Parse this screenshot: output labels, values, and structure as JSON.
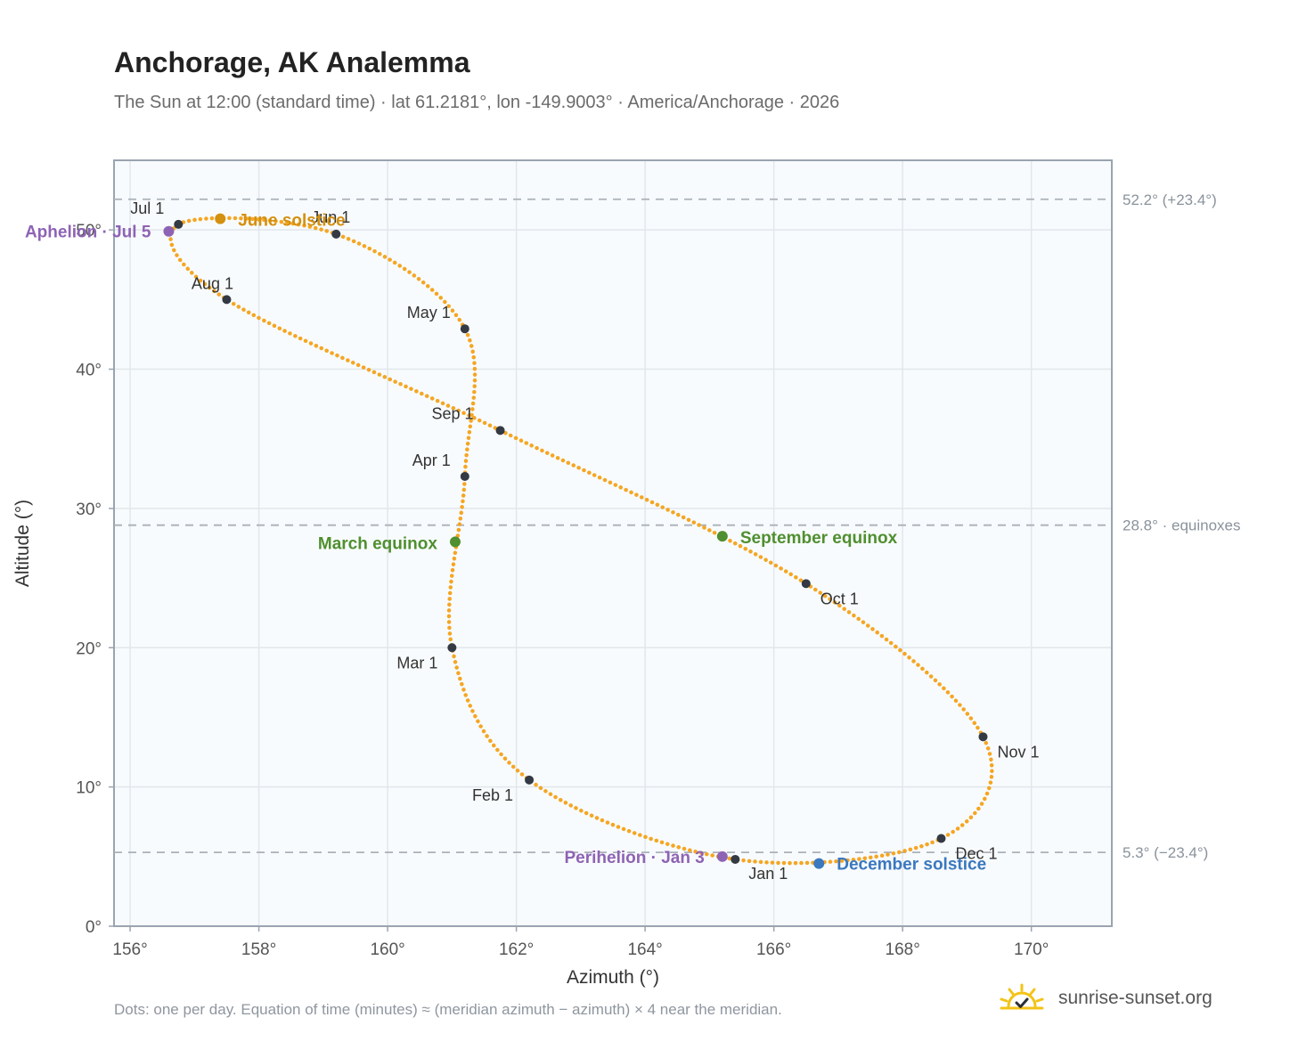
{
  "title": "Anchorage, AK Analemma",
  "subtitle": "The Sun at 12:00 (standard time) · lat 61.2181°, lon -149.9003° · America/Anchorage · 2026",
  "footnote": "Dots: one per day. Equation of time (minutes) ≈ (meridian azimuth − azimuth) × 4 near the meridian.",
  "brand": {
    "text": "sunrise-sunset.org",
    "icon": "sun-check-icon"
  },
  "colors": {
    "curve": "#f5a623",
    "month_marker": "#333a44",
    "june_solstice": "#d4900f",
    "december_solstice": "#3a78bf",
    "equinox": "#4f8f2f",
    "apsis": "#8e63b4",
    "reference_line": "#aab1b9",
    "plot_bg": "#f8fbfd",
    "grid": "#e1e7ec"
  },
  "chart_data": {
    "type": "scatter",
    "xlabel": "Azimuth (°)",
    "ylabel": "Altitude (°)",
    "xlim": [
      155.75,
      171.25
    ],
    "ylim": [
      0,
      55
    ],
    "xticks": [
      156,
      158,
      160,
      162,
      164,
      166,
      168,
      170
    ],
    "yticks": [
      0,
      10,
      20,
      30,
      40,
      50
    ],
    "grid": true,
    "reference_lines": [
      {
        "y": 52.2,
        "label": "52.2° (+23.4°)"
      },
      {
        "y": 28.8,
        "label": "28.8° · equinoxes"
      },
      {
        "y": 5.3,
        "label": "5.3° (−23.4°)"
      }
    ],
    "month_markers": [
      {
        "label": "Jan 1",
        "x": 165.4,
        "y": 4.8
      },
      {
        "label": "Feb 1",
        "x": 162.2,
        "y": 10.5
      },
      {
        "label": "Mar 1",
        "x": 161.0,
        "y": 20.0
      },
      {
        "label": "Apr 1",
        "x": 161.2,
        "y": 32.3
      },
      {
        "label": "May 1",
        "x": 161.2,
        "y": 42.9
      },
      {
        "label": "Jun 1",
        "x": 159.2,
        "y": 49.7
      },
      {
        "label": "Jul 1",
        "x": 156.75,
        "y": 50.4
      },
      {
        "label": "Aug 1",
        "x": 157.5,
        "y": 45.0
      },
      {
        "label": "Sep 1",
        "x": 161.75,
        "y": 35.6
      },
      {
        "label": "Oct 1",
        "x": 166.5,
        "y": 24.6
      },
      {
        "label": "Nov 1",
        "x": 169.25,
        "y": 13.6
      },
      {
        "label": "Dec 1",
        "x": 168.6,
        "y": 6.3
      }
    ],
    "events": [
      {
        "label": "June solstice",
        "x": 157.4,
        "y": 50.8,
        "kind": "june_solstice"
      },
      {
        "label": "December solstice",
        "x": 166.7,
        "y": 4.5,
        "kind": "december_solstice"
      },
      {
        "label": "March equinox",
        "x": 161.05,
        "y": 27.6,
        "kind": "equinox"
      },
      {
        "label": "September equinox",
        "x": 165.2,
        "y": 28.0,
        "kind": "equinox"
      },
      {
        "label": "Aphelion · Jul 5",
        "x": 156.6,
        "y": 49.9,
        "kind": "apsis"
      },
      {
        "label": "Perihelion · Jan 3",
        "x": 165.2,
        "y": 5.0,
        "kind": "apsis"
      }
    ]
  }
}
